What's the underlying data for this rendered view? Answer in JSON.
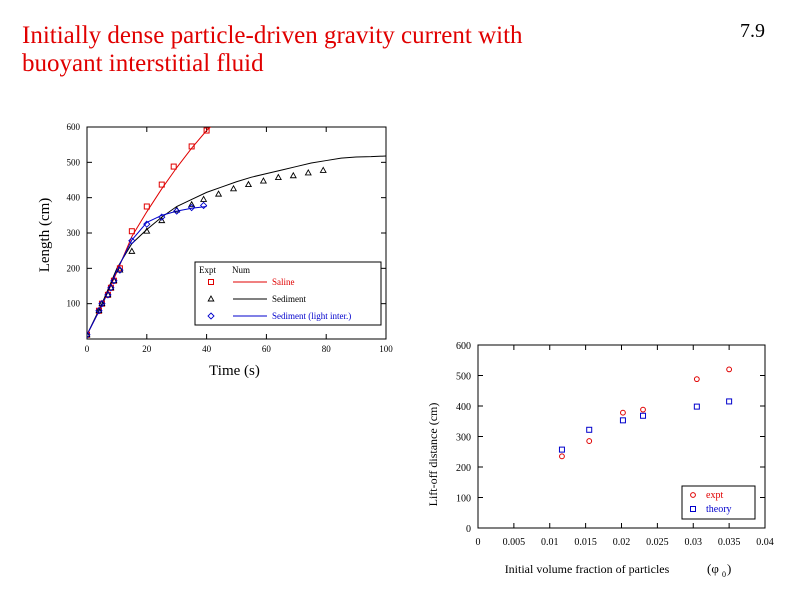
{
  "slide": {
    "title_line1": "Initially dense particle-driven gravity current with",
    "title_line2": "buoyant interstitial fluid",
    "page_number": "7.9",
    "title_color": "#e00000"
  },
  "chart_data": [
    {
      "type": "line",
      "xlabel": "Time (s)",
      "ylabel": "Length (cm)",
      "xlim": [
        0,
        100
      ],
      "ylim": [
        0,
        600
      ],
      "xticks": [
        0,
        20,
        40,
        60,
        80,
        100
      ],
      "yticks": [
        100,
        200,
        300,
        400,
        500,
        600
      ],
      "grid": false,
      "legend": {
        "placement": "bottom-right",
        "header_expt": "Expt",
        "header_num": "Num"
      },
      "series": [
        {
          "name": "Saline",
          "color": "#e00000",
          "marker": "square",
          "points": [
            [
              0,
              12
            ],
            [
              4,
              80
            ],
            [
              5,
              100
            ],
            [
              7,
              125
            ],
            [
              8,
              145
            ],
            [
              9,
              165
            ],
            [
              11,
              200
            ],
            [
              15,
              305
            ],
            [
              20,
              375
            ],
            [
              25,
              437
            ],
            [
              29,
              488
            ],
            [
              35,
              545
            ],
            [
              40,
              590
            ]
          ],
          "line": [
            [
              0,
              12
            ],
            [
              5,
              95
            ],
            [
              10,
              190
            ],
            [
              15,
              290
            ],
            [
              20,
              360
            ],
            [
              25,
              425
            ],
            [
              30,
              485
            ],
            [
              35,
              540
            ],
            [
              40,
              590
            ],
            [
              42,
              605
            ]
          ]
        },
        {
          "name": "Sediment",
          "color": "#000000",
          "marker": "triangle",
          "points": [
            [
              0,
              12
            ],
            [
              4,
              80
            ],
            [
              5,
              100
            ],
            [
              7,
              125
            ],
            [
              8,
              145
            ],
            [
              9,
              165
            ],
            [
              11,
              195
            ],
            [
              15,
              248
            ],
            [
              20,
              305
            ],
            [
              25,
              335
            ],
            [
              30,
              365
            ],
            [
              35,
              380
            ],
            [
              39,
              395
            ],
            [
              44,
              410
            ],
            [
              49,
              425
            ],
            [
              54,
              437
            ],
            [
              59,
              447
            ],
            [
              64,
              457
            ],
            [
              69,
              462
            ],
            [
              74,
              470
            ],
            [
              79,
              477
            ]
          ],
          "line": [
            [
              0,
              12
            ],
            [
              5,
              100
            ],
            [
              10,
              200
            ],
            [
              15,
              270
            ],
            [
              20,
              310
            ],
            [
              25,
              345
            ],
            [
              30,
              375
            ],
            [
              35,
              395
            ],
            [
              40,
              415
            ],
            [
              45,
              430
            ],
            [
              50,
              445
            ],
            [
              55,
              458
            ],
            [
              60,
              468
            ],
            [
              65,
              478
            ],
            [
              70,
              488
            ],
            [
              75,
              498
            ],
            [
              80,
              505
            ],
            [
              85,
              512
            ],
            [
              90,
              515
            ],
            [
              95,
              516
            ],
            [
              100,
              518
            ]
          ]
        },
        {
          "name": "Sediment (light inter.)",
          "color": "#0000cc",
          "marker": "diamond",
          "points": [
            [
              0,
              12
            ],
            [
              4,
              80
            ],
            [
              5,
              100
            ],
            [
              7,
              125
            ],
            [
              8,
              145
            ],
            [
              9,
              165
            ],
            [
              11,
              195
            ],
            [
              15,
              278
            ],
            [
              20,
              325
            ],
            [
              25,
              345
            ],
            [
              30,
              362
            ],
            [
              35,
              372
            ],
            [
              39,
              378
            ]
          ],
          "line": [
            [
              0,
              12
            ],
            [
              5,
              95
            ],
            [
              10,
              195
            ],
            [
              15,
              280
            ],
            [
              20,
              330
            ],
            [
              25,
              350
            ],
            [
              30,
              362
            ],
            [
              35,
              370
            ],
            [
              40,
              375
            ]
          ]
        }
      ]
    },
    {
      "type": "scatter",
      "xlabel": "Initial volume fraction of particles",
      "xlabel_symbol": "φ",
      "xlabel_subscript": "0",
      "ylabel": "Lift-off distance (cm)",
      "xlim": [
        0,
        0.04
      ],
      "ylim": [
        0,
        600
      ],
      "xticks": [
        "0",
        "0.005",
        "0.01",
        "0.015",
        "0.02",
        "0.025",
        "0.03",
        "0.035",
        "0.04"
      ],
      "yticks": [
        "0",
        "100",
        "200",
        "300",
        "400",
        "500",
        "600"
      ],
      "grid": false,
      "legend": {
        "placement": "bottom-right"
      },
      "series": [
        {
          "name": "expt",
          "color": "#e00000",
          "marker": "circle",
          "points": [
            [
              0.0117,
              235
            ],
            [
              0.0155,
              285
            ],
            [
              0.0202,
              378
            ],
            [
              0.023,
              388
            ],
            [
              0.0305,
              488
            ],
            [
              0.035,
              520
            ]
          ]
        },
        {
          "name": "theory",
          "color": "#0000cc",
          "marker": "square",
          "points": [
            [
              0.0117,
              257
            ],
            [
              0.0155,
              322
            ],
            [
              0.0202,
              353
            ],
            [
              0.023,
              368
            ],
            [
              0.0305,
              398
            ],
            [
              0.035,
              415
            ]
          ]
        }
      ]
    }
  ]
}
